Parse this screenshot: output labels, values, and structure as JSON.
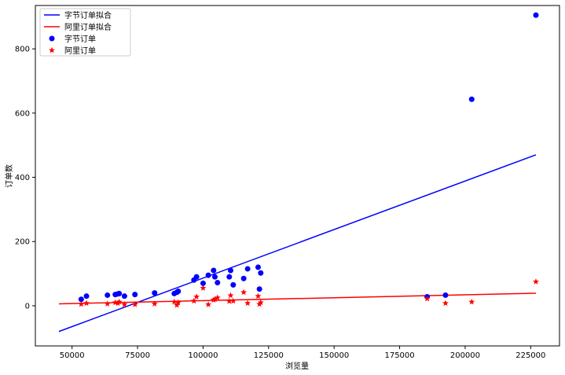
{
  "chart_data": {
    "type": "scatter",
    "xlabel": "浏览量",
    "ylabel": "订单数",
    "xlim": [
      36000,
      236000
    ],
    "ylim": [
      -125,
      935
    ],
    "xticks": [
      50000,
      75000,
      100000,
      125000,
      150000,
      175000,
      200000,
      225000
    ],
    "xtick_labels": [
      "50000",
      "75000",
      "100000",
      "125000",
      "150000",
      "175000",
      "200000",
      "225000"
    ],
    "yticks": [
      0,
      200,
      400,
      600,
      800
    ],
    "ytick_labels": [
      "0",
      "200",
      "400",
      "600",
      "800"
    ],
    "grid": false,
    "legend_position": "top-left",
    "legend": [
      "字节订单拟合",
      "阿里订单拟合",
      "字节订单",
      "阿里订单"
    ],
    "series": [
      {
        "name": "字节订单拟合",
        "kind": "line",
        "color": "#0000ff",
        "x": [
          45000,
          227000
        ],
        "y": [
          -80,
          470
        ]
      },
      {
        "name": "阿里订单拟合",
        "kind": "line",
        "color": "#ff0000",
        "x": [
          45000,
          227000
        ],
        "y": [
          6,
          39
        ]
      },
      {
        "name": "字节订单",
        "kind": "scatter",
        "marker": "circle",
        "color": "#0000ff",
        "x": [
          53500,
          55500,
          63500,
          66500,
          67500,
          68000,
          70000,
          74000,
          81500,
          89000,
          90000,
          90500,
          96500,
          97500,
          100000,
          102000,
          104000,
          104500,
          105500,
          110000,
          110500,
          111500,
          115500,
          117000,
          121000,
          121500,
          122000,
          185500,
          192500,
          202500,
          227000
        ],
        "y": [
          20,
          30,
          33,
          35,
          37,
          38,
          30,
          35,
          40,
          38,
          42,
          45,
          80,
          90,
          70,
          95,
          110,
          90,
          72,
          90,
          110,
          65,
          85,
          115,
          120,
          52,
          102,
          28,
          33,
          643,
          905
        ]
      },
      {
        "name": "阿里订单",
        "kind": "scatter",
        "marker": "star",
        "color": "#ff0000",
        "x": [
          53500,
          55500,
          63500,
          66500,
          67500,
          68000,
          70000,
          74000,
          81500,
          89000,
          90000,
          90500,
          96500,
          97500,
          100000,
          102000,
          104000,
          104500,
          105500,
          110000,
          110500,
          111500,
          115500,
          117000,
          121000,
          121500,
          122000,
          185500,
          192500,
          202500,
          227000
        ],
        "y": [
          5,
          8,
          6,
          10,
          8,
          12,
          4,
          4,
          6,
          12,
          2,
          10,
          15,
          28,
          55,
          4,
          18,
          20,
          25,
          14,
          32,
          15,
          42,
          8,
          30,
          5,
          10,
          22,
          8,
          12,
          75
        ]
      }
    ]
  }
}
